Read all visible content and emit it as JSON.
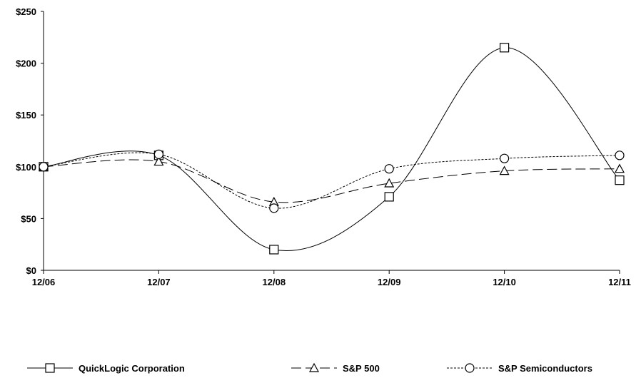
{
  "chart_data": {
    "type": "line",
    "categories": [
      "12/06",
      "12/07",
      "12/08",
      "12/09",
      "12/10",
      "12/11"
    ],
    "ylim": [
      0,
      250
    ],
    "yticks": [
      0,
      50,
      100,
      150,
      200,
      250
    ],
    "ytick_labels": [
      "$0",
      "$50",
      "$100",
      "$150",
      "$200",
      "$250"
    ],
    "grid": false,
    "legend_position": "bottom",
    "series": [
      {
        "name": "QuickLogic Corporation",
        "marker": "square",
        "dash": "solid",
        "values": [
          100,
          111,
          20,
          71,
          215,
          87
        ]
      },
      {
        "name": "S&P 500",
        "marker": "triangle",
        "dash": "long-dash",
        "values": [
          100,
          105,
          66,
          84,
          96,
          98
        ]
      },
      {
        "name": "S&P Semiconductors",
        "marker": "circle",
        "dash": "dotted",
        "values": [
          100,
          112,
          60,
          98,
          108,
          111
        ]
      }
    ]
  }
}
